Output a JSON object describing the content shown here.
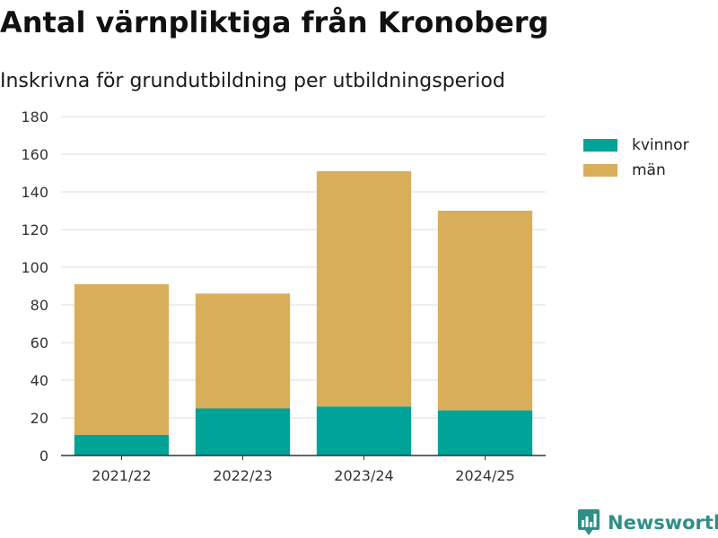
{
  "header": {
    "title": "Antal värnpliktiga från Kronoberg",
    "subtitle": "Inskrivna för grundutbildning per utbildningsperiod"
  },
  "legend": {
    "items": [
      {
        "label": "kvinnor",
        "color": "#00a398"
      },
      {
        "label": "män",
        "color": "#d9ae5b"
      }
    ]
  },
  "brand": {
    "name": "Newsworthy",
    "color": "#2f8f86",
    "icon": "bar-chart-speech-bubble-icon"
  },
  "chart_data": {
    "type": "bar",
    "stacked": true,
    "title": "Antal värnpliktiga från Kronoberg",
    "subtitle": "Inskrivna för grundutbildning per utbildningsperiod",
    "xlabel": "",
    "ylabel": "",
    "categories": [
      "2021/22",
      "2022/23",
      "2023/24",
      "2024/25"
    ],
    "series": [
      {
        "name": "kvinnor",
        "color": "#00a398",
        "values": [
          11,
          25,
          26,
          24
        ]
      },
      {
        "name": "män",
        "color": "#d9ae5b",
        "values": [
          80,
          61,
          125,
          106
        ]
      }
    ],
    "ylim": [
      0,
      180
    ],
    "yticks": [
      0,
      20,
      40,
      60,
      80,
      100,
      120,
      140,
      160,
      180
    ],
    "grid": true,
    "legend_position": "top-right"
  }
}
